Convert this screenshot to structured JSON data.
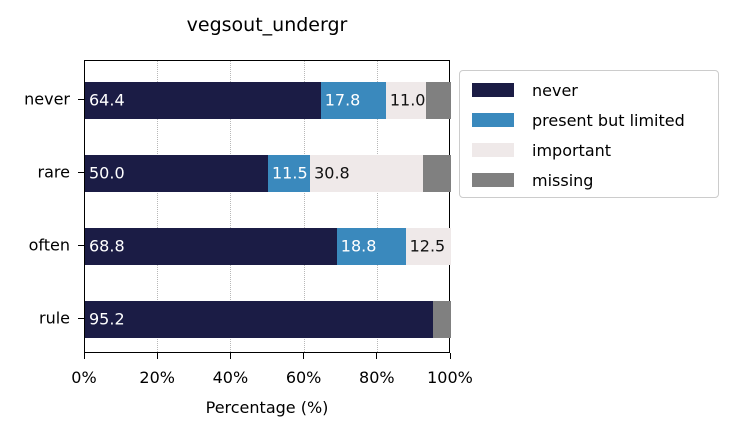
{
  "chart_data": {
    "type": "bar",
    "orientation": "horizontal",
    "stacked": true,
    "title": "vegsout_undergr",
    "xlabel": "Percentage (%)",
    "ylabel": "",
    "xlim": [
      0,
      100
    ],
    "x_ticks": [
      "0%",
      "20%",
      "40%",
      "60%",
      "80%",
      "100%"
    ],
    "grid": "vertical dotted",
    "legend_position": "outside right top",
    "categories": [
      "never",
      "rare",
      "often",
      "rule"
    ],
    "series": [
      {
        "name": "never",
        "color": "#1b1c45",
        "values": [
          64.4,
          50.0,
          68.8,
          95.2
        ]
      },
      {
        "name": "present but limited",
        "color": "#3a89bd",
        "values": [
          17.8,
          11.5,
          18.8,
          0.0
        ]
      },
      {
        "name": "important",
        "color": "#efe9e9",
        "values": [
          11.0,
          30.8,
          12.5,
          0.0
        ]
      },
      {
        "name": "missing",
        "color": "#808080",
        "values": [
          6.8,
          7.7,
          0.0,
          4.8
        ]
      }
    ],
    "data_labels": [
      [
        "64.4",
        "17.8",
        "11.0",
        ""
      ],
      [
        "50.0",
        "11.5",
        "30.8",
        ""
      ],
      [
        "68.8",
        "18.8",
        "12.5",
        ""
      ],
      [
        "95.2",
        "",
        "",
        ""
      ]
    ]
  },
  "labels": {
    "title": "vegsout_undergr",
    "xaxis_title": "Percentage (%)",
    "xticks": [
      "0%",
      "20%",
      "40%",
      "60%",
      "80%",
      "100%"
    ],
    "yticks": [
      "never",
      "rare",
      "often",
      "rule"
    ],
    "legend": [
      "never",
      "present but limited",
      "important",
      "missing"
    ]
  }
}
